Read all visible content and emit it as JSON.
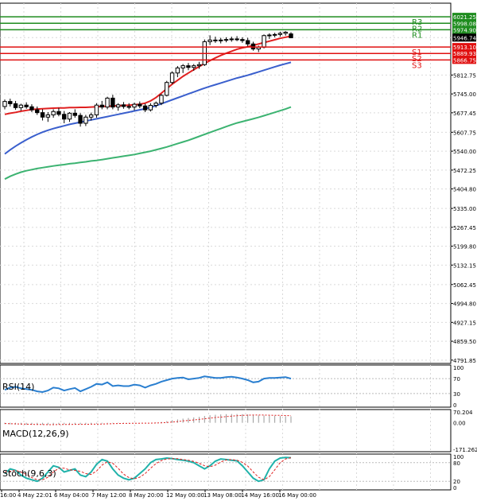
{
  "chart_data": {
    "type": "candlestick",
    "title": "",
    "price_axis": {
      "ylim": [
        4780,
        6070
      ],
      "ticks": [
        "6021.25",
        "5998.08",
        "5974.90",
        "5946.74",
        "5913.10",
        "5889.93",
        "5866.75",
        "5812.75",
        "5745.00",
        "5677.45",
        "5607.75",
        "5540.00",
        "5472.25",
        "5404.80",
        "5335.00",
        "5267.45",
        "5199.80",
        "5132.15",
        "5062.45",
        "4994.80",
        "4927.15",
        "4859.50",
        "4791.85"
      ],
      "tick_values": [
        6021.25,
        5998.08,
        5974.9,
        5946.74,
        5913.1,
        5889.93,
        5866.75,
        5812.75,
        5745.0,
        5677.45,
        5607.75,
        5540.0,
        5472.25,
        5404.8,
        5335.0,
        5267.45,
        5199.8,
        5132.15,
        5062.45,
        4994.8,
        4927.15,
        4859.5,
        4791.85
      ],
      "last_price": "5946.74"
    },
    "levels": [
      {
        "name": "R3",
        "value": 6021.25,
        "label": "6021.25",
        "color": "#1e8c1e"
      },
      {
        "name": "R2",
        "value": 5998.08,
        "label": "5998.08",
        "color": "#1e8c1e"
      },
      {
        "name": "R1",
        "value": 5974.9,
        "label": "5974.90",
        "color": "#1e8c1e"
      },
      {
        "name": "S1",
        "value": 5913.1,
        "label": "5913.10",
        "color": "#e01010"
      },
      {
        "name": "S2",
        "value": 5889.93,
        "label": "5889.93",
        "color": "#e01010"
      },
      {
        "name": "S3",
        "value": 5866.75,
        "label": "5866.75",
        "color": "#e01010"
      }
    ],
    "x_labels": [
      "16:00",
      "4 May 22:01",
      "6 May 04:00",
      "7 May 12:00",
      "8 May 20:00",
      "12 May 00:00",
      "13 May 08:00",
      "14 May 16:00",
      "16 May 00:00"
    ],
    "candles": [
      [
        5700,
        5725,
        5690,
        5718
      ],
      [
        5718,
        5728,
        5700,
        5710
      ],
      [
        5710,
        5720,
        5688,
        5696
      ],
      [
        5696,
        5710,
        5685,
        5705
      ],
      [
        5705,
        5715,
        5692,
        5699
      ],
      [
        5699,
        5708,
        5680,
        5688
      ],
      [
        5688,
        5700,
        5670,
        5678
      ],
      [
        5678,
        5690,
        5650,
        5662
      ],
      [
        5662,
        5680,
        5645,
        5670
      ],
      [
        5670,
        5690,
        5660,
        5682
      ],
      [
        5682,
        5695,
        5665,
        5672
      ],
      [
        5672,
        5684,
        5640,
        5655
      ],
      [
        5655,
        5680,
        5645,
        5676
      ],
      [
        5676,
        5690,
        5660,
        5668
      ],
      [
        5668,
        5676,
        5628,
        5640
      ],
      [
        5640,
        5670,
        5630,
        5662
      ],
      [
        5662,
        5678,
        5650,
        5670
      ],
      [
        5670,
        5712,
        5660,
        5705
      ],
      [
        5705,
        5720,
        5690,
        5698
      ],
      [
        5698,
        5735,
        5690,
        5730
      ],
      [
        5730,
        5742,
        5690,
        5698
      ],
      [
        5698,
        5712,
        5685,
        5706
      ],
      [
        5706,
        5716,
        5692,
        5700
      ],
      [
        5700,
        5712,
        5690,
        5698
      ],
      [
        5698,
        5714,
        5686,
        5708
      ],
      [
        5708,
        5718,
        5694,
        5702
      ],
      [
        5702,
        5710,
        5680,
        5688
      ],
      [
        5688,
        5712,
        5682,
        5704
      ],
      [
        5704,
        5718,
        5696,
        5712
      ],
      [
        5712,
        5745,
        5705,
        5740
      ],
      [
        5740,
        5792,
        5736,
        5786
      ],
      [
        5786,
        5826,
        5780,
        5820
      ],
      [
        5820,
        5845,
        5805,
        5838
      ],
      [
        5838,
        5852,
        5820,
        5846
      ],
      [
        5846,
        5856,
        5830,
        5840
      ],
      [
        5840,
        5852,
        5828,
        5846
      ],
      [
        5846,
        5860,
        5835,
        5850
      ],
      [
        5850,
        5940,
        5845,
        5932
      ],
      [
        5932,
        5955,
        5920,
        5938
      ],
      [
        5938,
        5950,
        5928,
        5936
      ],
      [
        5936,
        5946,
        5926,
        5938
      ],
      [
        5938,
        5948,
        5930,
        5940
      ],
      [
        5940,
        5950,
        5932,
        5942
      ],
      [
        5942,
        5952,
        5934,
        5940
      ],
      [
        5940,
        5948,
        5928,
        5936
      ],
      [
        5936,
        5946,
        5915,
        5924
      ],
      [
        5924,
        5932,
        5900,
        5906
      ],
      [
        5906,
        5918,
        5895,
        5912
      ],
      [
        5912,
        5958,
        5908,
        5954
      ],
      [
        5954,
        5962,
        5942,
        5956
      ],
      [
        5956,
        5964,
        5948,
        5958
      ],
      [
        5958,
        5968,
        5950,
        5962
      ],
      [
        5962,
        5970,
        5954,
        5966
      ],
      [
        5960,
        5966,
        5946,
        5946
      ]
    ],
    "ma_fast": [
      5672,
      5676,
      5679,
      5683,
      5686,
      5689,
      5691,
      5692,
      5693,
      5694,
      5695,
      5695,
      5696,
      5696,
      5697,
      5697,
      5698,
      5699,
      5700,
      5701,
      5702,
      5703,
      5704,
      5705,
      5706,
      5708,
      5712,
      5720,
      5732,
      5748,
      5764,
      5780,
      5794,
      5808,
      5820,
      5832,
      5843,
      5854,
      5864,
      5874,
      5883,
      5891,
      5898,
      5905,
      5910,
      5914,
      5919,
      5924,
      5929,
      5934,
      5939,
      5944,
      5948,
      5952
    ],
    "ma_mid": [
      5530,
      5545,
      5558,
      5570,
      5581,
      5591,
      5600,
      5608,
      5615,
      5621,
      5626,
      5631,
      5636,
      5640,
      5644,
      5648,
      5652,
      5656,
      5660,
      5664,
      5668,
      5672,
      5676,
      5680,
      5684,
      5688,
      5692,
      5697,
      5703,
      5710,
      5717,
      5724,
      5731,
      5738,
      5745,
      5752,
      5759,
      5766,
      5772,
      5778,
      5784,
      5790,
      5796,
      5802,
      5807,
      5812,
      5818,
      5824,
      5830,
      5836,
      5842,
      5848,
      5853,
      5858
    ],
    "ma_slow": [
      5440,
      5450,
      5458,
      5465,
      5470,
      5474,
      5478,
      5481,
      5484,
      5487,
      5490,
      5492,
      5495,
      5497,
      5500,
      5502,
      5505,
      5507,
      5510,
      5513,
      5516,
      5519,
      5522,
      5525,
      5528,
      5532,
      5536,
      5540,
      5545,
      5550,
      5555,
      5561,
      5567,
      5573,
      5579,
      5586,
      5593,
      5600,
      5607,
      5614,
      5621,
      5628,
      5635,
      5641,
      5646,
      5651,
      5656,
      5661,
      5667,
      5673,
      5679,
      5685,
      5691,
      5698
    ],
    "rsi": {
      "name": "RSI(14)",
      "ticks": [
        "100",
        "70",
        "30",
        "0"
      ],
      "tick_values": [
        100,
        70,
        30,
        0
      ],
      "values": [
        40,
        46,
        48,
        44,
        42,
        40,
        36,
        34,
        38,
        46,
        44,
        38,
        42,
        45,
        36,
        42,
        48,
        56,
        54,
        60,
        50,
        52,
        50,
        50,
        54,
        52,
        46,
        52,
        56,
        62,
        66,
        70,
        72,
        73,
        68,
        70,
        72,
        76,
        74,
        72,
        72,
        74,
        75,
        73,
        70,
        66,
        60,
        62,
        70,
        72,
        72,
        73,
        74,
        70
      ]
    },
    "macd": {
      "name": "MACD(12,26,9)",
      "ticks": [
        "70.204",
        "0.00",
        "-171.262"
      ],
      "tick_values": [
        70.204,
        0,
        -171.262
      ],
      "values": [
        -8,
        -10,
        -11,
        -12,
        -13,
        -13,
        -13,
        -13,
        -12,
        -11,
        -11,
        -10,
        -10,
        -10,
        -10,
        -9,
        -8,
        -6,
        -5,
        -3,
        -3,
        -2,
        -2,
        -2,
        -1,
        -1,
        -1,
        0,
        2,
        6,
        11,
        17,
        22,
        27,
        31,
        35,
        38,
        44,
        49,
        52,
        54,
        56,
        57,
        57,
        56,
        54,
        51,
        48,
        47,
        46,
        45,
        44,
        43,
        42
      ],
      "signal": [
        -5,
        -6,
        -7,
        -8,
        -9,
        -10,
        -11,
        -11,
        -12,
        -12,
        -11,
        -11,
        -11,
        -10,
        -10,
        -10,
        -9,
        -9,
        -8,
        -7,
        -6,
        -5,
        -4,
        -4,
        -3,
        -3,
        -2,
        -2,
        -1,
        0,
        2,
        5,
        8,
        12,
        15,
        19,
        22,
        26,
        30,
        34,
        37,
        40,
        43,
        46,
        48,
        49,
        50,
        50,
        50,
        49,
        48,
        48,
        47,
        46
      ]
    },
    "stoch": {
      "name": "Stoch(9,6,3)",
      "ticks": [
        "100",
        "80",
        "20",
        "0"
      ],
      "tick_values": [
        100,
        80,
        20,
        0
      ],
      "k": [
        45,
        60,
        55,
        40,
        30,
        25,
        20,
        30,
        50,
        70,
        65,
        50,
        55,
        60,
        40,
        35,
        50,
        75,
        90,
        85,
        60,
        40,
        30,
        25,
        30,
        45,
        60,
        80,
        90,
        92,
        95,
        93,
        90,
        88,
        85,
        80,
        70,
        60,
        70,
        85,
        92,
        90,
        88,
        86,
        70,
        50,
        30,
        20,
        25,
        60,
        85,
        95,
        97,
        96
      ],
      "d": [
        50,
        52,
        55,
        50,
        42,
        32,
        25,
        25,
        33,
        50,
        62,
        62,
        57,
        55,
        52,
        45,
        42,
        53,
        72,
        83,
        78,
        62,
        43,
        32,
        28,
        33,
        45,
        62,
        77,
        87,
        92,
        93,
        93,
        90,
        88,
        84,
        78,
        70,
        67,
        72,
        82,
        89,
        90,
        88,
        81,
        69,
        50,
        33,
        25,
        35,
        57,
        80,
        92,
        96
      ]
    }
  }
}
